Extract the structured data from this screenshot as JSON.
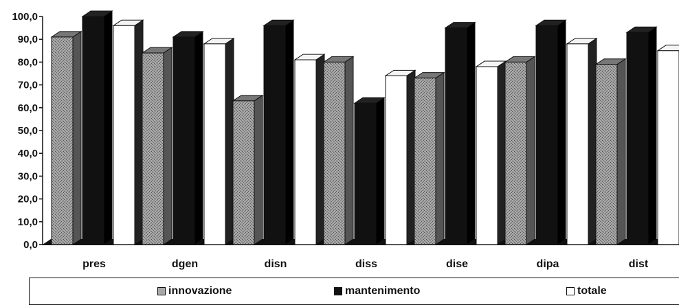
{
  "chart_data": {
    "type": "bar",
    "categories": [
      "pres",
      "dgen",
      "disn",
      "diss",
      "dise",
      "dipa",
      "dist"
    ],
    "series": [
      {
        "name": "innovazione",
        "values": [
          91,
          84,
          63,
          80,
          73,
          80,
          79
        ]
      },
      {
        "name": "mantenimento",
        "values": [
          100,
          91,
          96,
          62,
          95,
          96,
          93
        ]
      },
      {
        "name": "totale",
        "values": [
          96,
          88,
          81,
          74,
          78,
          88,
          85
        ]
      }
    ],
    "y_tick_labels": [
      "0,0",
      "10,0",
      "20,0",
      "30,0",
      "40,0",
      "50,0",
      "60,0",
      "70,0",
      "80,0",
      "90,0",
      "100,0"
    ],
    "ylim": [
      0,
      100
    ],
    "style": "3d",
    "grid": false,
    "legend_position": "bottom",
    "colors": {
      "innovazione": "#9a9a9a",
      "mantenimento": "#111111",
      "totale": "#ffffff"
    }
  }
}
